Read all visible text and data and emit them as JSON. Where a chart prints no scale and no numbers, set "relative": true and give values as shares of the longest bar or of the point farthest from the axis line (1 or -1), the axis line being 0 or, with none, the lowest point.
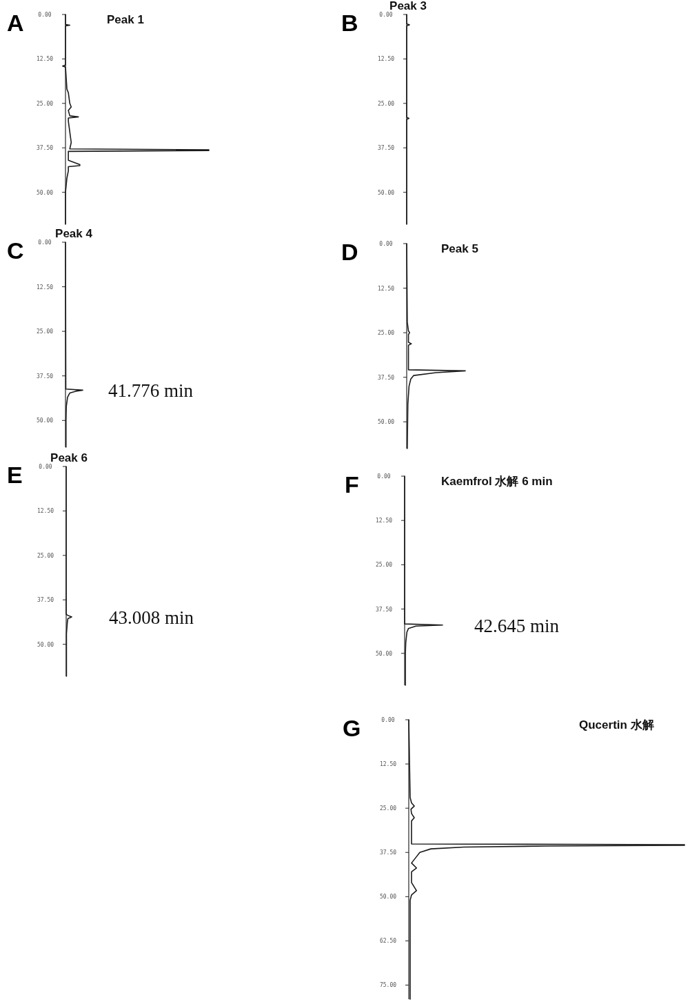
{
  "chart_data": [
    {
      "type": "line",
      "orientation": "horizontal",
      "relative": true,
      "title": "Peak 1",
      "annotations": [
        "A"
      ],
      "ylim": [
        59,
        0
      ],
      "yticks": [
        {
          "value": 0,
          "label": "0.00"
        },
        {
          "value": 12.5,
          "label": "12.50"
        },
        {
          "value": 25,
          "label": "25.00"
        },
        {
          "value": 37.5,
          "label": "37.50"
        },
        {
          "value": 50,
          "label": "50.00"
        }
      ],
      "series": [
        {
          "color": "#1a1a1a",
          "x": [
            0,
            2.8,
            3.0,
            3.2,
            14.2,
            14.5,
            14.8,
            21,
            22,
            25,
            26,
            27,
            28.5,
            28.8,
            29.1,
            30,
            33,
            36,
            37.8,
            38.05,
            38.25,
            38.5,
            41,
            42.2,
            42.5,
            42.8,
            44,
            46,
            50,
            59
          ],
          "values": [
            0,
            0,
            0.03,
            0,
            0,
            -0.02,
            0,
            0.01,
            0.02,
            0.03,
            0.04,
            0.02,
            0.03,
            0.09,
            0.02,
            0.02,
            0.03,
            0.04,
            0.03,
            1,
            1,
            0.02,
            0.02,
            0.1,
            0.1,
            0.02,
            0.02,
            0.01,
            0,
            0
          ]
        }
      ]
    },
    {
      "type": "line",
      "orientation": "horizontal",
      "relative": true,
      "title": "Peak 3",
      "annotations": [
        "B"
      ],
      "ylim": [
        59,
        0
      ],
      "yticks": [
        {
          "value": 0,
          "label": "0.00"
        },
        {
          "value": 12.5,
          "label": "12.50"
        },
        {
          "value": 25,
          "label": "25.00"
        },
        {
          "value": 37.5,
          "label": "37.50"
        },
        {
          "value": 50,
          "label": "50.00"
        }
      ],
      "series": [
        {
          "color": "#1a1a1a",
          "x": [
            0,
            2.6,
            2.9,
            3.2,
            28.9,
            29.2,
            29.5,
            59
          ],
          "values": [
            0,
            0,
            1,
            0,
            0,
            0.8,
            0,
            0
          ]
        }
      ]
    },
    {
      "type": "line",
      "orientation": "horizontal",
      "relative": true,
      "title": "Peak 4",
      "annotations": [
        "C",
        "41.776 min"
      ],
      "ylim": [
        57.5,
        0
      ],
      "yticks": [
        {
          "value": 0,
          "label": "0.00"
        },
        {
          "value": 12.5,
          "label": "12.50"
        },
        {
          "value": 25,
          "label": "25.00"
        },
        {
          "value": 37.5,
          "label": "37.50"
        },
        {
          "value": 50,
          "label": "50.00"
        }
      ],
      "series": [
        {
          "color": "#1a1a1a",
          "x": [
            0,
            41.2,
            41.5,
            41.8,
            42.3,
            43.5,
            46,
            50,
            57.5
          ],
          "values": [
            0,
            0.02,
            1,
            0.6,
            0.25,
            0.12,
            0.05,
            0.03,
            0.03
          ]
        }
      ]
    },
    {
      "type": "line",
      "orientation": "horizontal",
      "relative": true,
      "title": "Peak 5",
      "annotations": [
        "D"
      ],
      "ylim": [
        57.5,
        0
      ],
      "yticks": [
        {
          "value": 0,
          "label": "0.00"
        },
        {
          "value": 12.5,
          "label": "12.50"
        },
        {
          "value": 25,
          "label": "25.00"
        },
        {
          "value": 37.5,
          "label": "37.50"
        },
        {
          "value": 50,
          "label": "50.00"
        }
      ],
      "series": [
        {
          "color": "#1a1a1a",
          "x": [
            0,
            22,
            24.5,
            25,
            25.5,
            27.7,
            28.1,
            28.5,
            35.4,
            35.7,
            36.2,
            37,
            38,
            40,
            45,
            57.5
          ],
          "values": [
            0,
            0.01,
            0.03,
            0.05,
            0.03,
            0.03,
            0.08,
            0.03,
            0.03,
            1,
            0.5,
            0.12,
            0.07,
            0.04,
            0.02,
            0.01
          ]
        }
      ]
    },
    {
      "type": "line",
      "orientation": "horizontal",
      "relative": true,
      "title": "Peak 6",
      "annotations": [
        "E",
        "43.008 min"
      ],
      "ylim": [
        59,
        0
      ],
      "yticks": [
        {
          "value": 0,
          "label": "0.00"
        },
        {
          "value": 12.5,
          "label": "12.50"
        },
        {
          "value": 25,
          "label": "25.00"
        },
        {
          "value": 37.5,
          "label": "37.50"
        },
        {
          "value": 50,
          "label": "50.00"
        }
      ],
      "series": [
        {
          "color": "#1a1a1a",
          "x": [
            0,
            41.5,
            41.8,
            42.3,
            42.8,
            44,
            47,
            59
          ],
          "values": [
            0,
            0,
            0.2,
            1,
            0.3,
            0.2,
            0.05,
            0.05
          ]
        }
      ]
    },
    {
      "type": "line",
      "orientation": "horizontal",
      "relative": true,
      "title": "Kaemfrol 水解 6 min",
      "annotations": [
        "F",
        "42.645 min"
      ],
      "ylim": [
        59,
        0
      ],
      "yticks": [
        {
          "value": 0,
          "label": "0.00"
        },
        {
          "value": 12.5,
          "label": "12.50"
        },
        {
          "value": 25,
          "label": "25.00"
        },
        {
          "value": 37.5,
          "label": "37.50"
        },
        {
          "value": 50,
          "label": "50.00"
        }
      ],
      "series": [
        {
          "color": "#1a1a1a",
          "x": [
            0,
            41.7,
            42.0,
            42.3,
            43,
            44,
            47,
            50,
            59
          ],
          "values": [
            0,
            0,
            1,
            0.3,
            0.1,
            0.06,
            0.03,
            0.02,
            0.02
          ]
        }
      ]
    },
    {
      "type": "line",
      "orientation": "horizontal",
      "relative": true,
      "title": "Qucertin 水解",
      "annotations": [
        "G"
      ],
      "ylim": [
        79,
        0
      ],
      "yticks": [
        {
          "value": 0,
          "label": "0.00"
        },
        {
          "value": 12.5,
          "label": "12.50"
        },
        {
          "value": 25,
          "label": "25.00"
        },
        {
          "value": 37.5,
          "label": "37.50"
        },
        {
          "value": 50,
          "label": "50.00"
        },
        {
          "value": 62.5,
          "label": "62.50"
        },
        {
          "value": 75,
          "label": "75.00"
        }
      ],
      "series": [
        {
          "color": "#1a1a1a",
          "x": [
            0,
            22,
            23.5,
            24.4,
            25.3,
            26.5,
            27.7,
            28.6,
            30,
            35.1,
            35.3,
            35.5,
            35.7,
            36,
            36.5,
            37.5,
            38.5,
            40.5,
            41.9,
            43,
            46,
            48.3,
            49.5,
            51,
            79
          ],
          "values": [
            0,
            0.005,
            0.01,
            0.02,
            0.008,
            0.01,
            0.02,
            0.01,
            0.01,
            0.01,
            1,
            1,
            0.5,
            0.2,
            0.08,
            0.04,
            0.03,
            0.01,
            0.028,
            0.01,
            0.01,
            0.028,
            0.01,
            0.005,
            0.005
          ]
        }
      ]
    }
  ]
}
